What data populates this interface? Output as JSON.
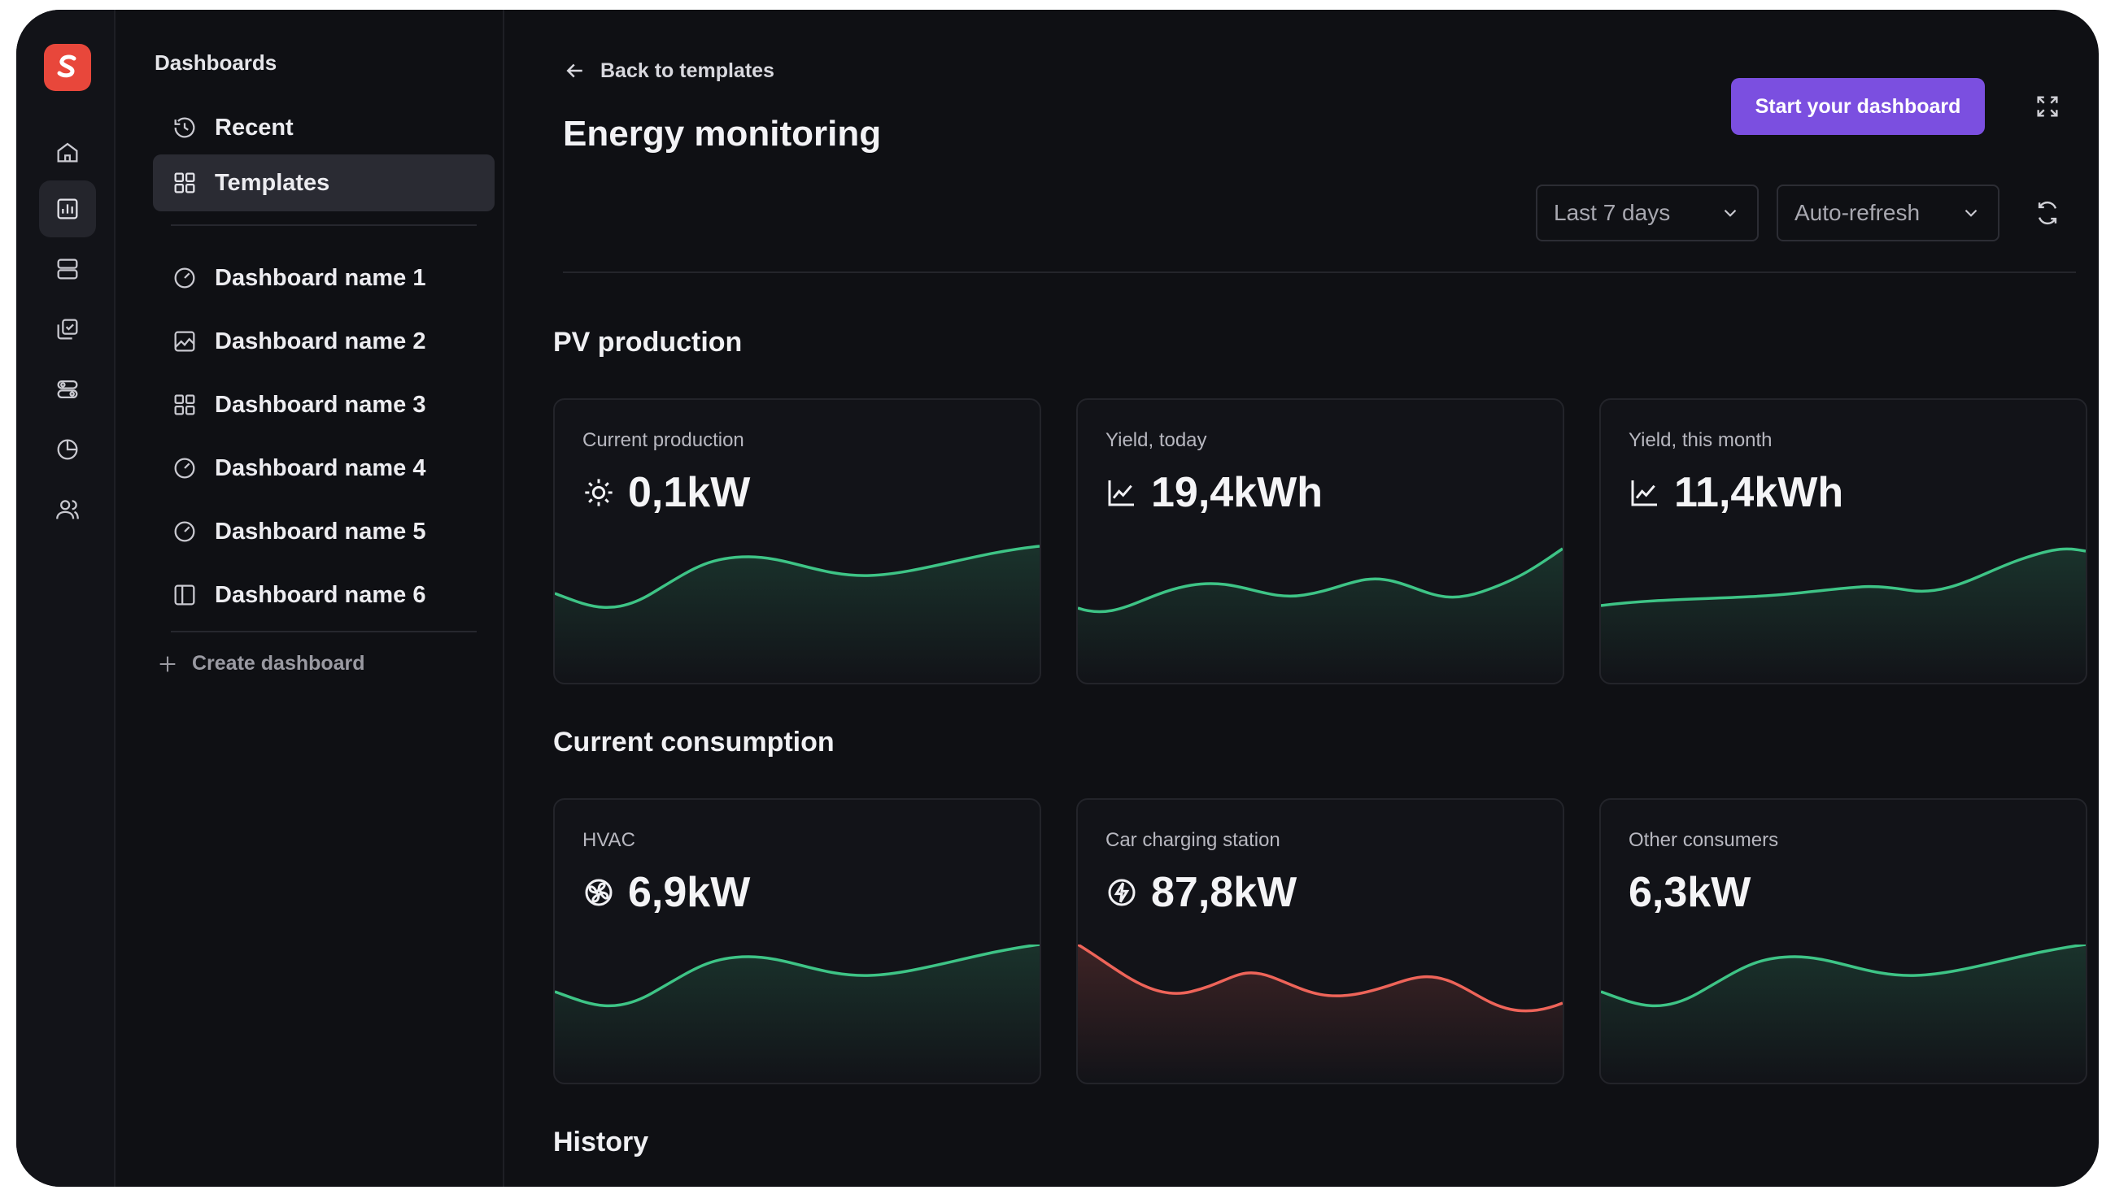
{
  "sidebar": {
    "title": "Dashboards",
    "items": [
      {
        "label": "Recent",
        "icon": "clock-icon"
      },
      {
        "label": "Templates",
        "icon": "grid-icon",
        "active": true
      },
      {
        "label": "Dashboard name 1",
        "icon": "gauge-icon"
      },
      {
        "label": "Dashboard name 2",
        "icon": "chart-icon"
      },
      {
        "label": "Dashboard name 3",
        "icon": "grid-icon"
      },
      {
        "label": "Dashboard name 4",
        "icon": "gauge-icon"
      },
      {
        "label": "Dashboard name 5",
        "icon": "gauge-icon"
      },
      {
        "label": "Dashboard name 6",
        "icon": "panel-icon"
      }
    ],
    "create_label": "Create dashboard"
  },
  "header": {
    "back_label": "Back to templates",
    "title": "Energy monitoring",
    "start_button": "Start your dashboard",
    "range_select": "Last 7 days",
    "refresh_select": "Auto-refresh"
  },
  "sections": {
    "pv": "PV production",
    "consumption": "Current consumption",
    "history": "History"
  },
  "cards": [
    {
      "label": "Current production",
      "value": "0,1kW",
      "icon": "sun-icon",
      "trend": "up",
      "color": "#3ec486"
    },
    {
      "label": "Yield, today",
      "value": "19,4kWh",
      "icon": "line-chart-icon",
      "trend": "up",
      "color": "#3ec486"
    },
    {
      "label": "Yield, this month",
      "value": "11,4kWh",
      "icon": "line-chart-icon",
      "trend": "up",
      "color": "#3ec486"
    },
    {
      "label": "HVAC",
      "value": "6,9kW",
      "icon": "fan-icon",
      "trend": "up",
      "color": "#3ec486"
    },
    {
      "label": "Car charging station",
      "value": "87,8kW",
      "icon": "bolt-icon",
      "trend": "down",
      "color": "#ee6459"
    },
    {
      "label": "Other consumers",
      "value": "6,3kW",
      "icon": "",
      "trend": "up",
      "color": "#3ec486"
    }
  ],
  "colors": {
    "accent": "#7b4fe0",
    "positive": "#3ec486",
    "negative": "#ee6459"
  }
}
